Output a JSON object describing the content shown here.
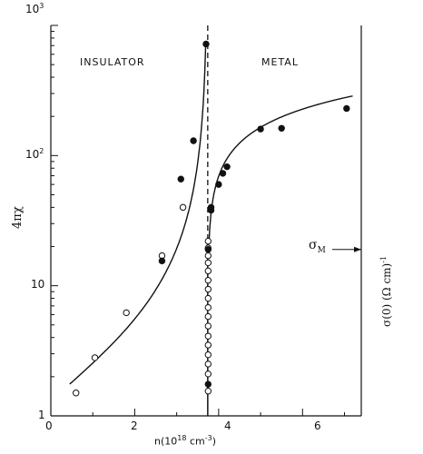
{
  "chart_data": {
    "type": "scatter",
    "x_label": "n(10^18 cm^-3)",
    "y_label_left": "4πχ",
    "y_label_right": "σ(0) (Ω cm)^-1",
    "x_range": [
      0,
      7.4
    ],
    "y_range": [
      1,
      1000
    ],
    "y_scale": "log",
    "x_ticks": [
      "0",
      "2",
      "4",
      "6"
    ],
    "y_tick_labels": [
      "1",
      "10",
      "10^2",
      "10^3"
    ],
    "regions": [
      "INSULATOR",
      "METAL"
    ],
    "critical_density": 3.74,
    "sigma_M_label": "σM",
    "series": [
      {
        "marker": "open-circle",
        "points": [
          [
            0.6,
            1.5
          ],
          [
            1.05,
            2.8
          ],
          [
            1.8,
            6.2
          ],
          [
            2.65,
            17
          ],
          [
            3.15,
            40
          ],
          [
            3.75,
            1.55
          ],
          [
            3.75,
            2.1
          ],
          [
            3.75,
            2.5
          ],
          [
            3.75,
            2.95
          ],
          [
            3.75,
            3.5
          ],
          [
            3.75,
            4.1
          ],
          [
            3.75,
            4.9
          ],
          [
            3.75,
            5.8
          ],
          [
            3.75,
            6.8
          ],
          [
            3.75,
            8.0
          ],
          [
            3.75,
            9.4
          ],
          [
            3.75,
            11.0
          ],
          [
            3.75,
            13.0
          ],
          [
            3.75,
            15.0
          ],
          [
            3.75,
            17.0
          ],
          [
            3.75,
            19.5
          ],
          [
            3.75,
            22.0
          ]
        ]
      },
      {
        "marker": "filled-circle",
        "points": [
          [
            2.65,
            15.5
          ],
          [
            3.1,
            66
          ],
          [
            3.4,
            130
          ],
          [
            3.7,
            720
          ],
          [
            3.75,
            1.75
          ],
          [
            3.75,
            19
          ],
          [
            3.82,
            38
          ],
          [
            3.82,
            40
          ],
          [
            4.0,
            60
          ],
          [
            4.1,
            73
          ],
          [
            4.2,
            82
          ],
          [
            5.0,
            160
          ],
          [
            5.5,
            162
          ],
          [
            7.05,
            230
          ]
        ]
      }
    ]
  }
}
